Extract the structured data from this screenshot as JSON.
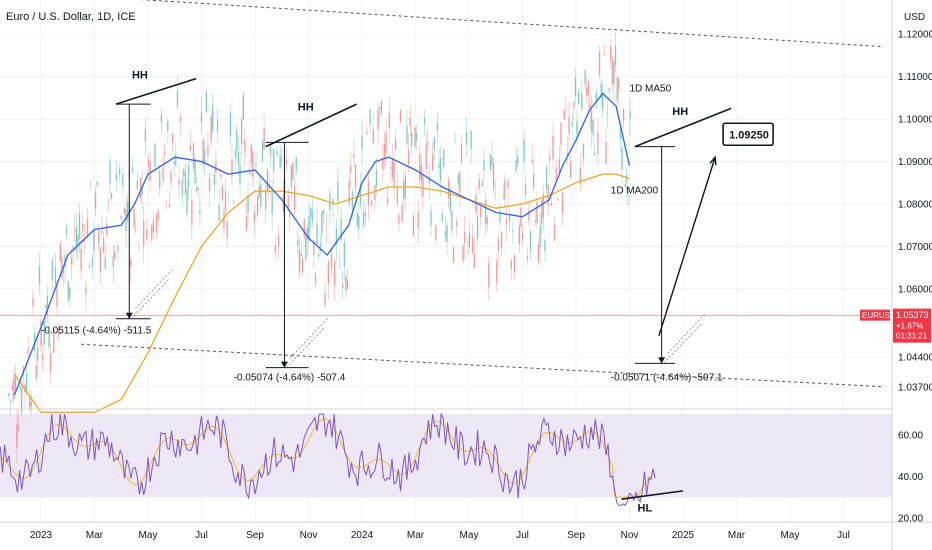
{
  "header": {
    "symbol_title": "Euro / U.S. Dollar, 1D, ICE",
    "currency": "USD"
  },
  "price_tag": {
    "symbol": "EURUSD",
    "price": "1.05373",
    "change": "+1.67%",
    "countdown": "01:31:21"
  },
  "target_label": "1.09250",
  "labels": {
    "ma50": "1D MA50",
    "ma200": "1D MA200",
    "hh1": "HH",
    "hh2": "HH",
    "hh3": "HH",
    "hl": "HL",
    "measure1": "-0.05115 (-4.64%) -511.5",
    "measure2": "-0.05074 (-4.64%) -507.4",
    "measure3": "-0.05071 (-4.64%) -507.1"
  },
  "colors": {
    "ma50": "#2962ff",
    "ma200": "#f5a623",
    "candle_up": "#26a69a",
    "candle_down": "#ef5350",
    "rsi": "#7e57c2",
    "rsi_ma": "#f0c23b",
    "rsi_band": "#ede7f6",
    "price_tag": "#f23645"
  },
  "chart_data": {
    "type": "line",
    "price_axis": {
      "ticks": [
        "1.12000",
        "1.11000",
        "1.10000",
        "1.09000",
        "1.08000",
        "1.07000",
        "1.06000",
        "1.04400",
        "1.03700"
      ],
      "ylim": [
        1.032,
        1.128
      ]
    },
    "rsi_axis": {
      "ticks": [
        "60.00",
        "40.00",
        "20.00"
      ],
      "ylim": [
        18,
        72
      ]
    },
    "time_axis": {
      "labels": [
        "2023",
        "Mar",
        "May",
        "Jul",
        "Sep",
        "Nov",
        "2024",
        "Mar",
        "May",
        "Jul",
        "Sep",
        "Nov",
        "2025",
        "Mar",
        "May",
        "Jul"
      ],
      "values": [
        0,
        2,
        4,
        6,
        8,
        10,
        12,
        14,
        16,
        18,
        20,
        22,
        24,
        26,
        28,
        30
      ]
    },
    "series": [
      {
        "name": "1D MA50",
        "x": [
          -1.0,
          0.0,
          1.0,
          2.0,
          3.0,
          3.5,
          4.0,
          5.0,
          6.0,
          7.0,
          8.0,
          9.0,
          10.0,
          10.7,
          11.5,
          12.0,
          12.5,
          13.0,
          14.0,
          15.0,
          16.0,
          17.0,
          18.0,
          19.0,
          19.5,
          20.0,
          20.5,
          21.0,
          21.5,
          22.0
        ],
        "values": [
          1.035,
          1.051,
          1.068,
          1.074,
          1.075,
          1.08,
          1.087,
          1.091,
          1.09,
          1.087,
          1.088,
          1.081,
          1.072,
          1.068,
          1.075,
          1.085,
          1.09,
          1.091,
          1.088,
          1.084,
          1.081,
          1.078,
          1.077,
          1.081,
          1.089,
          1.095,
          1.102,
          1.106,
          1.103,
          1.089
        ]
      },
      {
        "name": "1D MA200",
        "x": [
          -1.0,
          0.0,
          1.0,
          2.0,
          3.0,
          4.0,
          5.0,
          6.0,
          7.0,
          8.0,
          9.0,
          10.0,
          11.0,
          12.0,
          13.0,
          14.0,
          15.0,
          16.0,
          17.0,
          18.0,
          19.0,
          20.0,
          21.0,
          21.5,
          22.0
        ],
        "values": [
          1.04,
          1.031,
          1.031,
          1.031,
          1.034,
          1.045,
          1.058,
          1.07,
          1.078,
          1.083,
          1.083,
          1.082,
          1.08,
          1.082,
          1.084,
          1.084,
          1.083,
          1.081,
          1.079,
          1.08,
          1.082,
          1.085,
          1.087,
          1.087,
          1.086
        ]
      }
    ],
    "annotations": {
      "channel_upper": {
        "x": [
          1.5,
          31.5
        ],
        "y": [
          1.129,
          1.117
        ]
      },
      "channel_lower": {
        "x": [
          1.5,
          31.5
        ],
        "y": [
          1.047,
          1.037
        ]
      },
      "hh_lines": [
        {
          "x": [
            2.8,
            5.8
          ],
          "y": [
            1.1035,
            1.1095
          ]
        },
        {
          "x": [
            8.4,
            11.8
          ],
          "y": [
            1.0935,
            1.1035
          ]
        },
        {
          "x": [
            22.2,
            25.8
          ],
          "y": [
            1.0935,
            1.1025
          ]
        }
      ],
      "measure_lines": [
        {
          "x_from": 2.8,
          "x_to": 4.1,
          "x_vert": 3.3,
          "top": 1.1035,
          "bottom": 1.053
        },
        {
          "x_from": 8.4,
          "x_to": 10.0,
          "x_vert": 9.1,
          "top": 1.0945,
          "bottom": 1.0415
        },
        {
          "x_from": 22.2,
          "x_to": 23.7,
          "x_vert": 23.2,
          "top": 1.0935,
          "bottom": 1.0425
        }
      ],
      "projection": {
        "x": [
          23.1,
          25.2
        ],
        "y": [
          1.049,
          1.091
        ]
      },
      "hl_line": {
        "rsi_x": [
          21.7,
          24.0
        ],
        "rsi_y": [
          29.0,
          33.0
        ]
      }
    },
    "grid": true,
    "legend": "inline labels"
  }
}
